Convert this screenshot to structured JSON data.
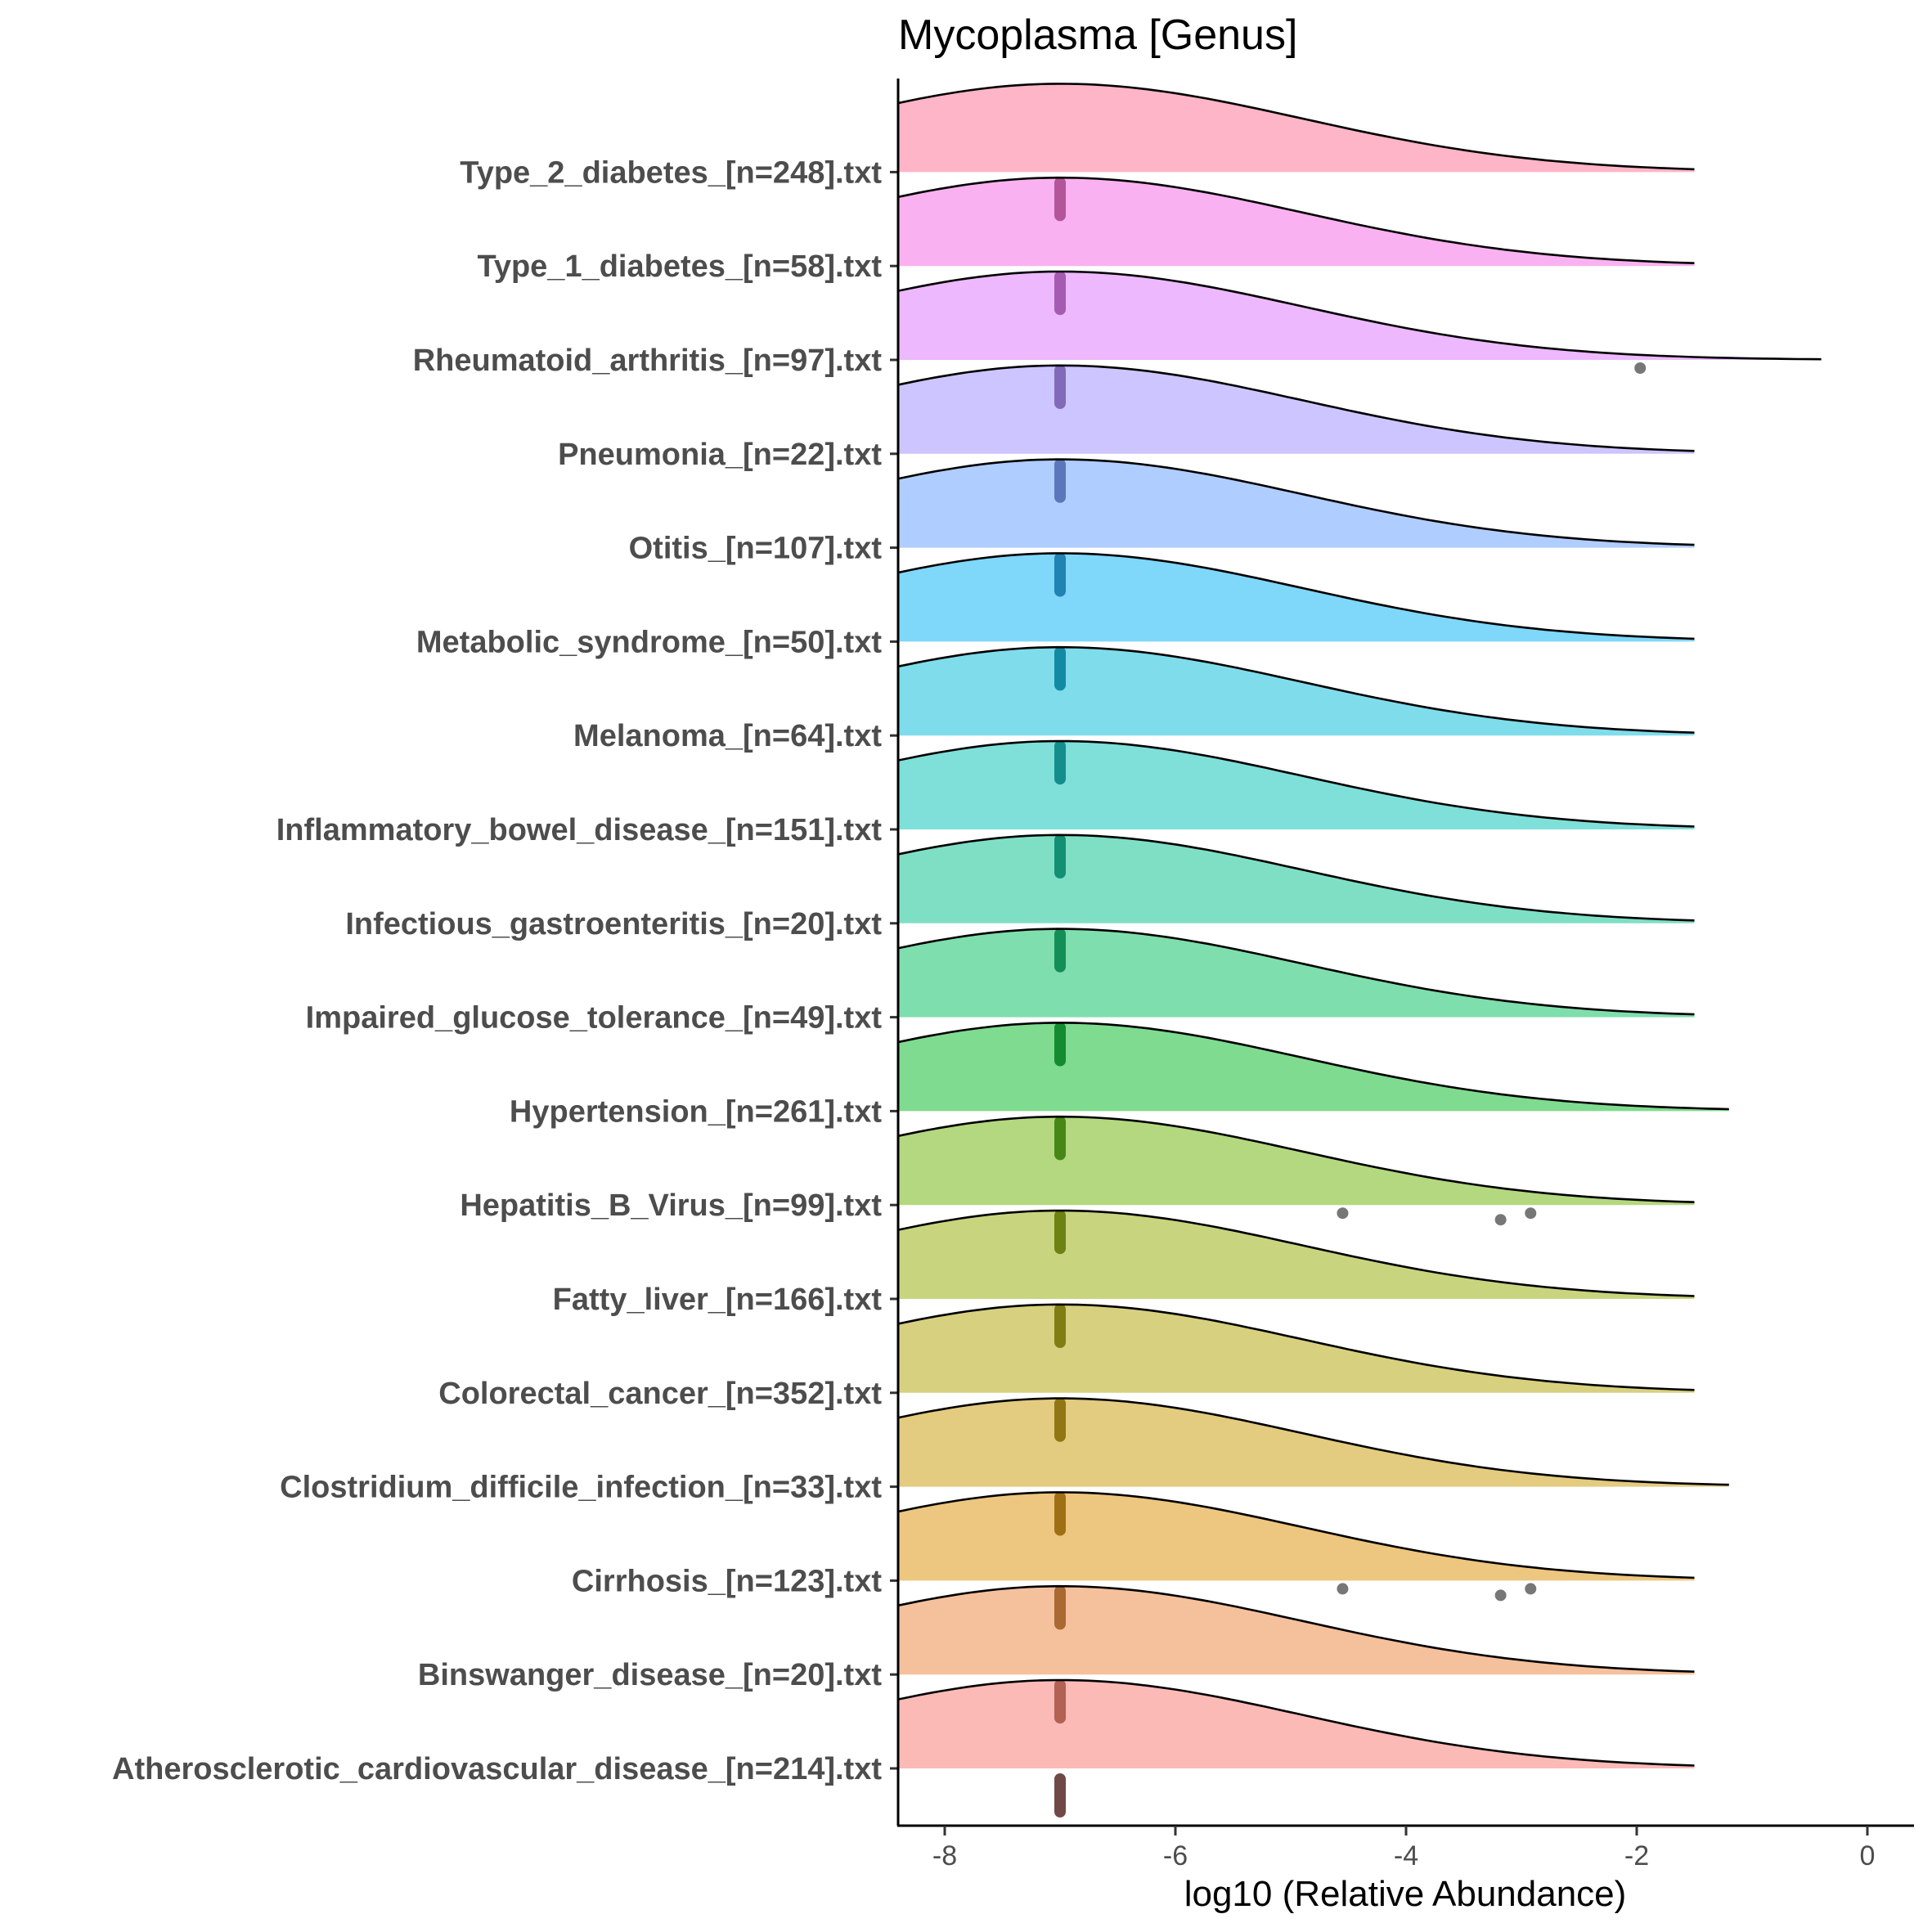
{
  "chart_data": {
    "type": "ridgeline",
    "title": "Mycoplasma [Genus]",
    "xlabel": "log10 (Relative Abundance)",
    "ylabel": "",
    "xlim": [
      -8.4,
      0.8
    ],
    "x_ticks": [
      -8,
      -6,
      -4,
      -2,
      0
    ],
    "x_tick_labels": [
      "-8",
      "-6",
      "-4",
      "-2",
      "0"
    ],
    "grid": false,
    "legend": "none",
    "categories": [
      "Atherosclerotic_cardiovascular_disease_[n=214].txt",
      "Binswanger_disease_[n=20].txt",
      "Cirrhosis_[n=123].txt",
      "Clostridium_difficile_infection_[n=33].txt",
      "Colorectal_cancer_[n=352].txt",
      "Fatty_liver_[n=166].txt",
      "Hepatitis_B_Virus_[n=99].txt",
      "Hypertension_[n=261].txt",
      "Impaired_glucose_tolerance_[n=49].txt",
      "Infectious_gastroenteritis_[n=20].txt",
      "Inflammatory_bowel_disease_[n=151].txt",
      "Melanoma_[n=64].txt",
      "Metabolic_syndrome_[n=50].txt",
      "Otitis_[n=107].txt",
      "Pneumonia_[n=22].txt",
      "Rheumatoid_arthritis_[n=97].txt",
      "Type_1_diabetes_[n=58].txt",
      "Type_2_diabetes_[n=248].txt"
    ],
    "colors": [
      "#F8766D",
      "#EC8239",
      "#DB8E00",
      "#C79800",
      "#AFA100",
      "#93AA00",
      "#68B100",
      "#00B81F",
      "#00BD5C",
      "#00C08B",
      "#00BFB4",
      "#00BAD8",
      "#00B0F6",
      "#619CFF",
      "#9C8CFF",
      "#DB72FB",
      "#F564E3",
      "#FF6C91"
    ],
    "series": [
      {
        "peak": -7.0,
        "tail_end": -1.5,
        "median": -7.0,
        "outliers": []
      },
      {
        "peak": -7.0,
        "tail_end": -1.5,
        "median": -7.0,
        "outliers": []
      },
      {
        "peak": -7.0,
        "tail_end": -1.5,
        "median": -7.0,
        "outliers": [
          -4.55,
          -3.18,
          -2.92
        ]
      },
      {
        "peak": -7.0,
        "tail_end": -1.2,
        "median": -7.0,
        "outliers": []
      },
      {
        "peak": -7.0,
        "tail_end": -1.5,
        "median": -7.0,
        "outliers": []
      },
      {
        "peak": -7.0,
        "tail_end": -1.5,
        "median": -7.0,
        "outliers": []
      },
      {
        "peak": -7.0,
        "tail_end": -1.5,
        "median": -7.0,
        "outliers": [
          -4.55,
          -3.18,
          -2.92
        ]
      },
      {
        "peak": -7.0,
        "tail_end": -1.2,
        "median": -7.0,
        "outliers": []
      },
      {
        "peak": -7.0,
        "tail_end": -1.5,
        "median": -7.0,
        "outliers": []
      },
      {
        "peak": -7.0,
        "tail_end": -1.5,
        "median": -7.0,
        "outliers": []
      },
      {
        "peak": -7.0,
        "tail_end": -1.5,
        "median": -7.0,
        "outliers": []
      },
      {
        "peak": -7.0,
        "tail_end": -1.5,
        "median": -7.0,
        "outliers": []
      },
      {
        "peak": -7.0,
        "tail_end": -1.5,
        "median": -7.0,
        "outliers": []
      },
      {
        "peak": -7.0,
        "tail_end": -1.5,
        "median": -7.0,
        "outliers": []
      },
      {
        "peak": -7.0,
        "tail_end": -1.5,
        "median": -7.0,
        "outliers": []
      },
      {
        "peak": -7.0,
        "tail_end": -0.4,
        "median": -7.0,
        "outliers": [
          -1.97
        ]
      },
      {
        "peak": -7.0,
        "tail_end": -1.5,
        "median": -7.0,
        "outliers": []
      },
      {
        "peak": -7.0,
        "tail_end": -1.5,
        "median": -7.0,
        "outliers": []
      }
    ]
  }
}
